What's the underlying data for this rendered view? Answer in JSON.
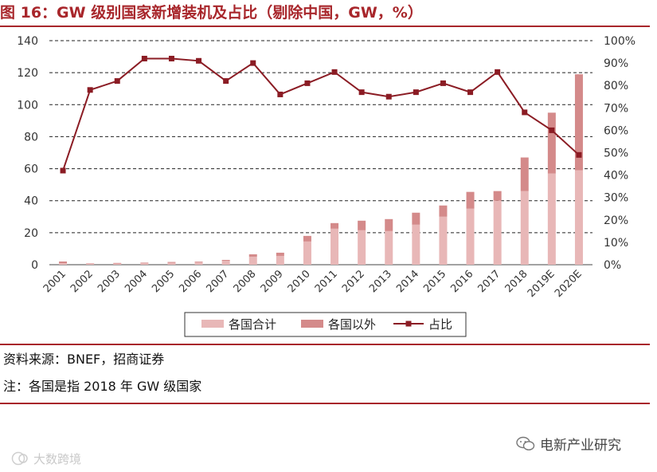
{
  "header": {
    "title": "图 16：GW 级别国家新增装机及占比（剔除中国，GW，%）"
  },
  "footer": {
    "source": "资料来源：BNEF，招商证券",
    "note": "注：各国是指 2018 年 GW 级国家"
  },
  "watermarks": {
    "left": "大数跨境",
    "right": "电新产业研究"
  },
  "chart_data": {
    "type": "bar",
    "stacked": true,
    "categories": [
      "2001",
      "2002",
      "2003",
      "2004",
      "2005",
      "2006",
      "2007",
      "2008",
      "2009",
      "2010",
      "2011",
      "2012",
      "2013",
      "2014",
      "2015",
      "2016",
      "2017",
      "2018",
      "2019E",
      "2020E"
    ],
    "series": [
      {
        "name": "各国合计",
        "type": "bar",
        "axis": "left",
        "color": "#e8b7b7",
        "values": [
          1,
          0.4,
          0.7,
          0.9,
          1.2,
          1.5,
          2.4,
          5.0,
          5.5,
          14.5,
          22.5,
          21.5,
          21.0,
          25.0,
          30.0,
          35.0,
          40.0,
          46.0,
          57.0,
          59.0
        ]
      },
      {
        "name": "各国以外",
        "type": "bar",
        "axis": "left",
        "color": "#d48a8a",
        "values": [
          1,
          0.4,
          0.4,
          0.4,
          0.5,
          0.4,
          0.6,
          1.5,
          2.0,
          3.5,
          3.5,
          6.0,
          7.5,
          7.5,
          7.0,
          10.5,
          6.0,
          21.0,
          38.0,
          60.0
        ]
      },
      {
        "name": "占比",
        "type": "line",
        "axis": "right",
        "color": "#8b1c24",
        "values": [
          42,
          78,
          82,
          92,
          92,
          91,
          82,
          90,
          76,
          81,
          86,
          77,
          75,
          77,
          81,
          77,
          86,
          68,
          60,
          49
        ]
      }
    ],
    "left_axis": {
      "min": 0,
      "max": 140,
      "ticks": [
        "0",
        "20",
        "40",
        "60",
        "80",
        "100",
        "120",
        "140"
      ]
    },
    "right_axis": {
      "min": 0,
      "max": 100,
      "ticks": [
        "0%",
        "10%",
        "20%",
        "30%",
        "40%",
        "50%",
        "60%",
        "70%",
        "80%",
        "90%",
        "100%"
      ]
    },
    "legend_position": "bottom",
    "gridlines": "dashed"
  }
}
